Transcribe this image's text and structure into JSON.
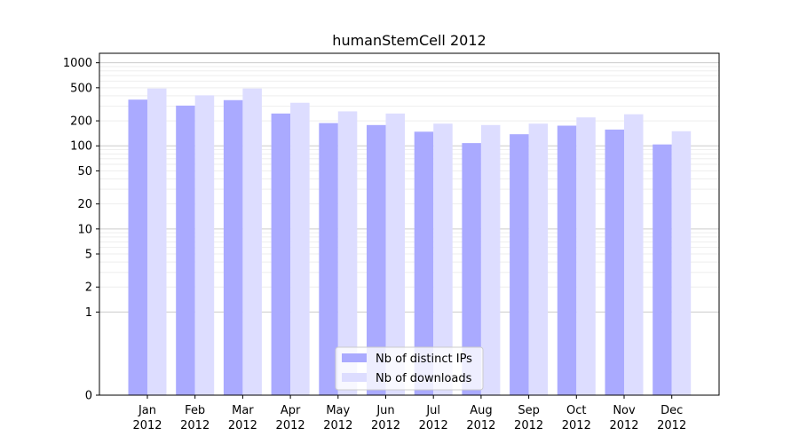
{
  "chart_data": {
    "type": "bar",
    "title": "humanStemCell 2012",
    "xlabel": "",
    "ylabel": "",
    "yscale": "symlog",
    "ylim": [
      0,
      1300
    ],
    "yticks": [
      0,
      1,
      2,
      5,
      10,
      20,
      50,
      100,
      200,
      500,
      1000
    ],
    "grid": true,
    "legend": "lower-center",
    "categories": [
      [
        "Jan",
        "2012"
      ],
      [
        "Feb",
        "2012"
      ],
      [
        "Mar",
        "2012"
      ],
      [
        "Apr",
        "2012"
      ],
      [
        "May",
        "2012"
      ],
      [
        "Jun",
        "2012"
      ],
      [
        "Jul",
        "2012"
      ],
      [
        "Aug",
        "2012"
      ],
      [
        "Sep",
        "2012"
      ],
      [
        "Oct",
        "2012"
      ],
      [
        "Nov",
        "2012"
      ],
      [
        "Dec",
        "2012"
      ]
    ],
    "series": [
      {
        "name": "Nb of distinct IPs",
        "color": "#aaaaff",
        "values": [
          360,
          305,
          355,
          245,
          188,
          178,
          148,
          108,
          138,
          175,
          157,
          104
        ]
      },
      {
        "name": "Nb of downloads",
        "color": "#ddddff",
        "values": [
          490,
          405,
          490,
          330,
          260,
          245,
          185,
          178,
          185,
          220,
          240,
          150
        ]
      }
    ]
  }
}
